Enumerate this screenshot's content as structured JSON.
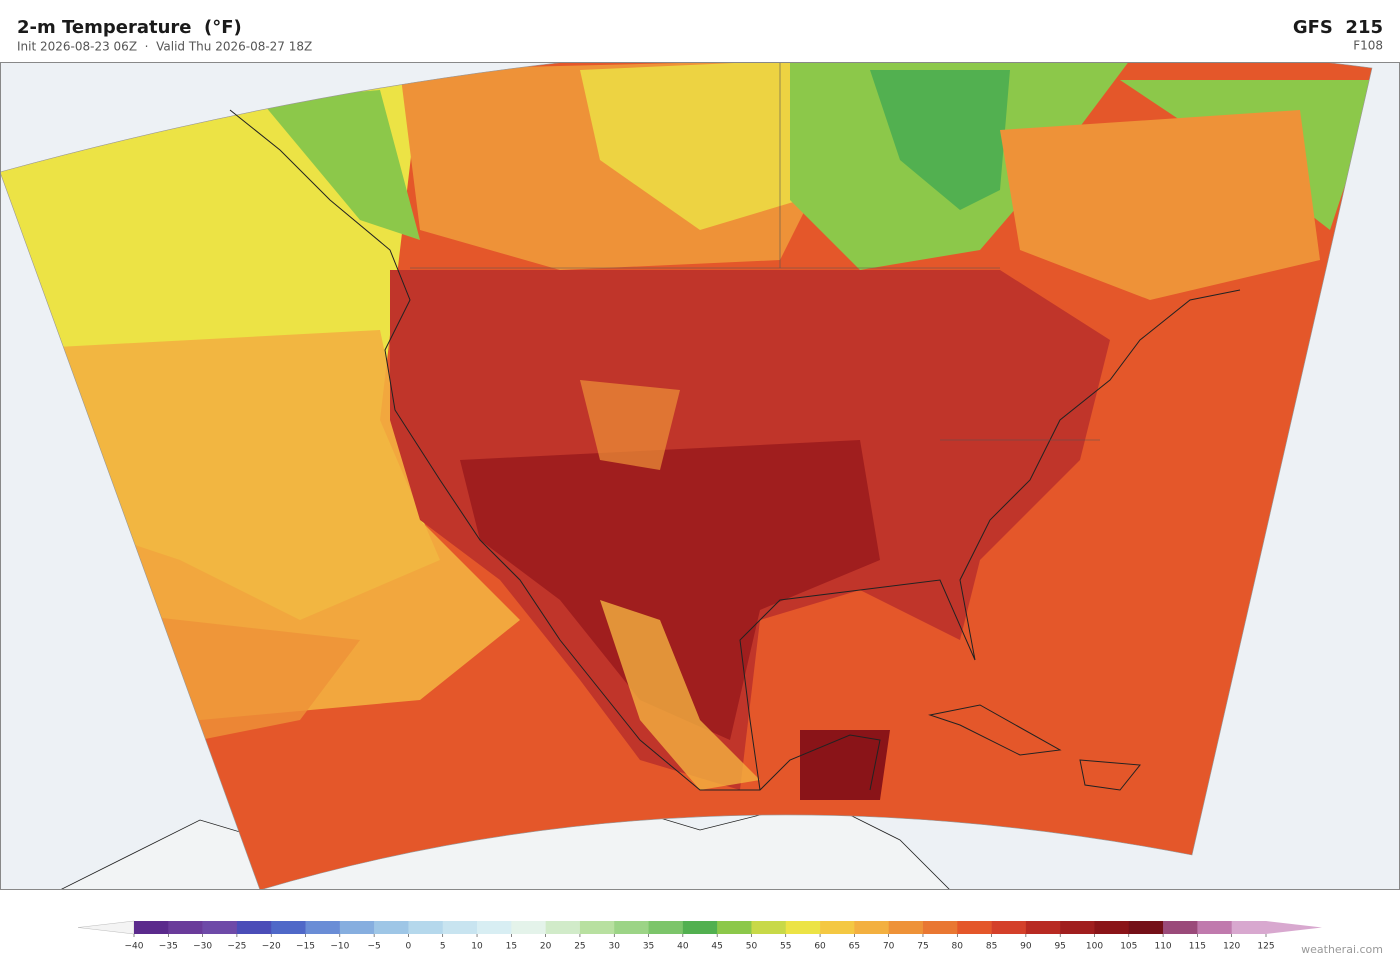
{
  "header": {
    "title": "2-m Temperature  (°F)",
    "subtitle": "Init 2026-08-23 06Z  ·  Valid Thu 2026-08-27 18Z",
    "model": "GFS  215",
    "forecast_hour": "F108"
  },
  "colorbar": {
    "ticks": [
      {
        "value": -40,
        "label": "−40"
      },
      {
        "value": -35,
        "label": "−35"
      },
      {
        "value": -30,
        "label": "−30"
      },
      {
        "value": -25,
        "label": "−25"
      },
      {
        "value": -20,
        "label": "−20"
      },
      {
        "value": -15,
        "label": "−15"
      },
      {
        "value": -10,
        "label": "−10"
      },
      {
        "value": -5,
        "label": "−5"
      },
      0,
      5,
      10,
      15,
      20,
      25,
      30,
      35,
      40,
      45,
      50,
      55,
      60,
      65,
      70,
      75,
      80,
      85,
      90,
      95,
      100,
      105,
      110,
      115,
      120,
      125
    ],
    "colors": [
      "#5b2a8c",
      "#6a3b9a",
      "#6e4aa8",
      "#4b4db8",
      "#4f68c8",
      "#6a8dd6",
      "#86aedf",
      "#9ec6e6",
      "#b5d8ec",
      "#c8e4f0",
      "#d8eef3",
      "#e4f3ea",
      "#d1ebc9",
      "#b8e0a0",
      "#9cd486",
      "#7cc56a",
      "#52b050",
      "#8cc84a",
      "#c8d948",
      "#ece345",
      "#f4c842",
      "#f3b040",
      "#ee9238",
      "#e97732",
      "#e4572a",
      "#d4402a",
      "#b82a22",
      "#a01e1e",
      "#8a1418",
      "#741018",
      "#9a4a7a",
      "#c07aad",
      "#d8a8cf"
    ],
    "under_color": "#f4f4f4",
    "over_color": "#d8a8cf"
  },
  "watermark": "weatherai.com"
}
